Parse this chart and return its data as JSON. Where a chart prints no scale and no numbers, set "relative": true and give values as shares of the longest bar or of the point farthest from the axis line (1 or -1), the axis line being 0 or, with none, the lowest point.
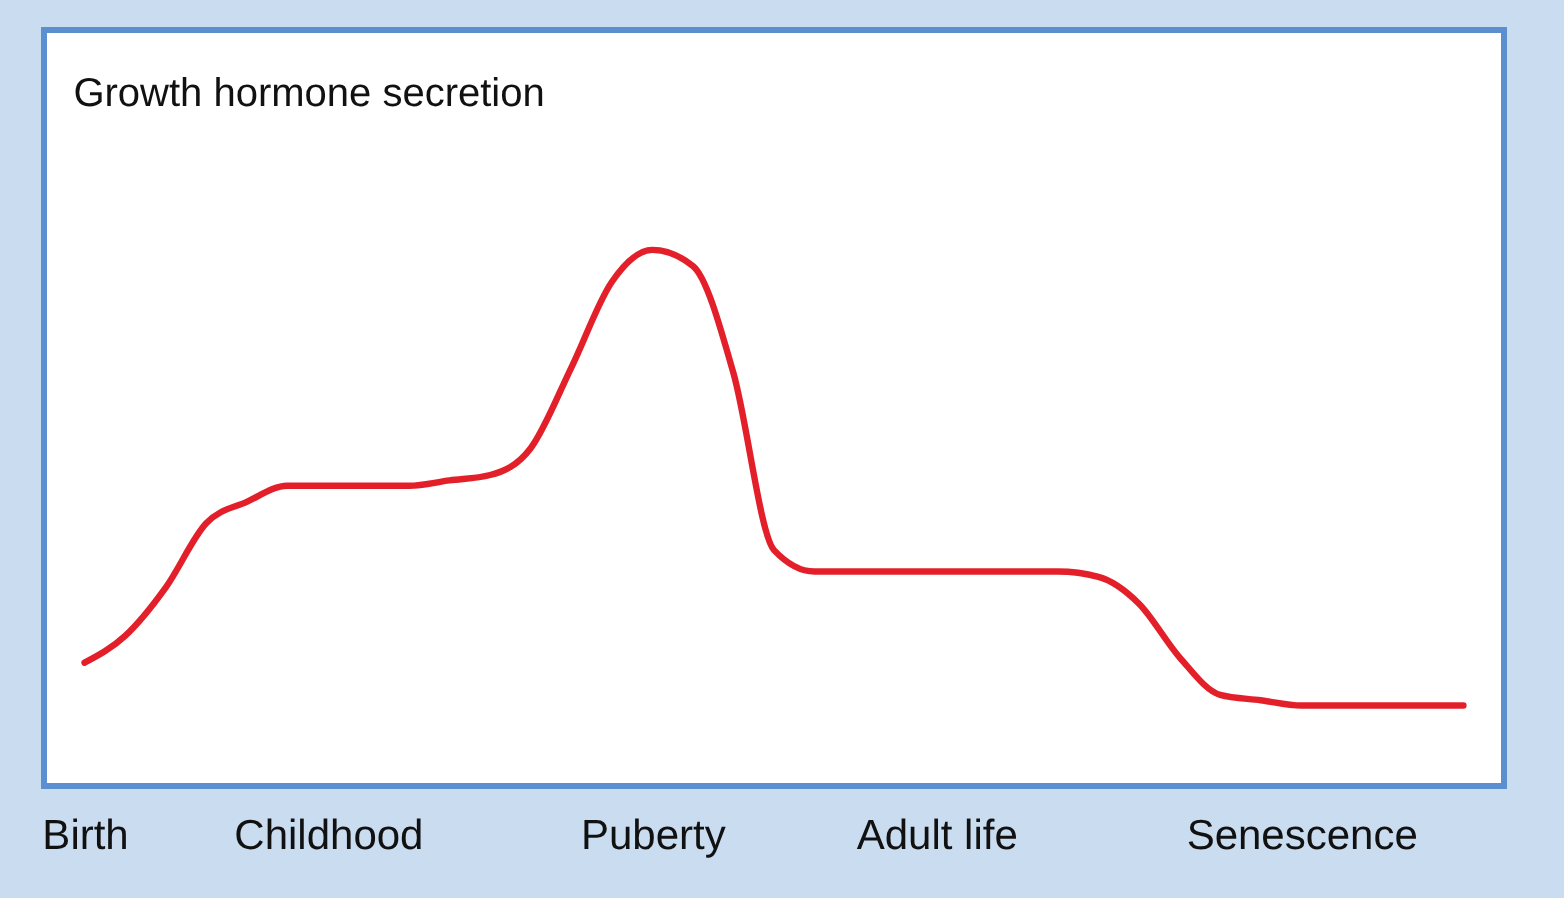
{
  "chart_data": {
    "type": "line",
    "title": "Growth hormone secretion",
    "relative": true,
    "categories": [
      "Birth",
      null,
      null,
      null,
      null,
      null,
      "Childhood",
      null,
      null,
      null,
      null,
      null,
      null,
      null,
      "Puberty",
      null,
      null,
      null,
      null,
      null,
      null,
      "Adult life",
      null,
      null,
      null,
      null,
      null,
      null,
      null,
      null,
      "Senescence",
      null,
      null,
      null,
      null
    ],
    "series": [
      {
        "color": "#e3202a",
        "values": [
          0.23,
          0.28,
          0.37,
          0.49,
          0.53,
          0.56,
          0.56,
          0.56,
          0.56,
          0.57,
          0.58,
          0.63,
          0.78,
          0.94,
          1,
          0.97,
          0.77,
          0.44,
          0.4,
          0.4,
          0.4,
          0.4,
          0.4,
          0.4,
          0.4,
          0.39,
          0.34,
          0.24,
          0.17,
          0.16,
          0.15,
          0.15,
          0.15,
          0.15,
          0.15
        ]
      }
    ],
    "grid": false,
    "legend": false,
    "marker": "none",
    "line_style": "solid"
  }
}
